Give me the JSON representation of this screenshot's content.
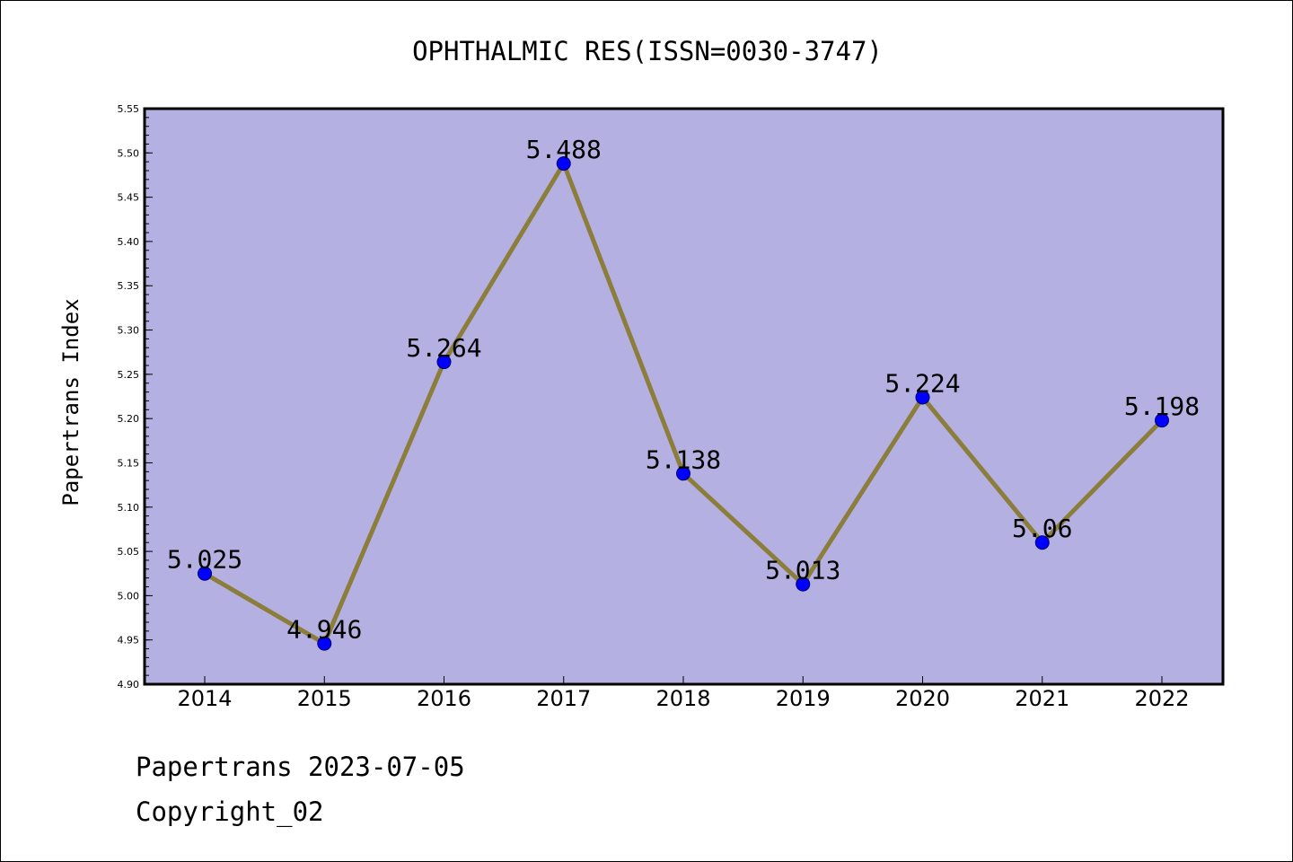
{
  "chart_data": {
    "type": "line",
    "title": "OPHTHALMIC RES(ISSN=0030-3747)",
    "xlabel": "",
    "ylabel": "Papertrans Index",
    "categories": [
      "2014",
      "2015",
      "2016",
      "2017",
      "2018",
      "2019",
      "2020",
      "2021",
      "2022"
    ],
    "series": [
      {
        "values": [
          5.025,
          4.946,
          5.264,
          5.488,
          5.138,
          5.013,
          5.224,
          5.06,
          5.198
        ],
        "labels": [
          "5.025",
          "4.946",
          "5.264",
          "5.488",
          "5.138",
          "5.013",
          "5.224",
          "5.06",
          "5.198"
        ]
      }
    ],
    "ylim": [
      4.9,
      5.55
    ],
    "yticks": [
      "4.90",
      "4.95",
      "5.00",
      "5.05",
      "5.10",
      "5.15",
      "5.20",
      "5.25",
      "5.30",
      "5.35",
      "5.40",
      "5.45",
      "5.50",
      "5.55"
    ],
    "grid": false,
    "legend": "none",
    "colors": {
      "plot_background": "#b5b0e2",
      "line": "#8b7d3a",
      "marker": "#0000ff",
      "marker_edge": "#00006a"
    }
  },
  "footer": {
    "line1": "Papertrans 2023-07-05",
    "line2": "Copyright_02"
  }
}
